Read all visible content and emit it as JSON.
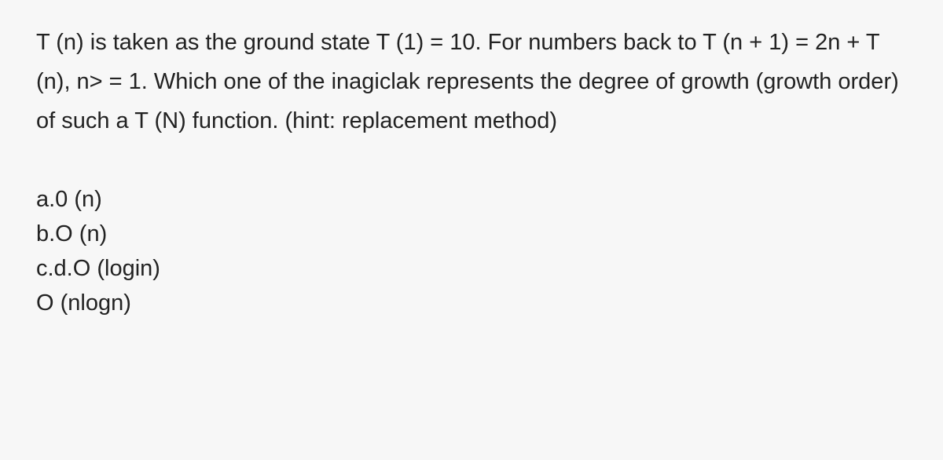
{
  "background_color": "#f7f7f7",
  "text_color": "#222222",
  "font_family": "Arial, Helvetica, sans-serif",
  "font_size_pt": 22,
  "line_height": 1.72,
  "question": {
    "text": "T (n) is taken as the ground state T (1) = 10. For numbers back to T (n + 1) = 2n + T (n), n> = 1. Which one of the inagiclak represents the degree of growth (growth order) of such a T (N) function. (hint: replacement method)"
  },
  "options": [
    {
      "label": "a.0 (n)"
    },
    {
      "label": "b.O (n)"
    },
    {
      "label": "c.d.O (login)"
    },
    {
      "label": "O (nlogn)"
    }
  ]
}
